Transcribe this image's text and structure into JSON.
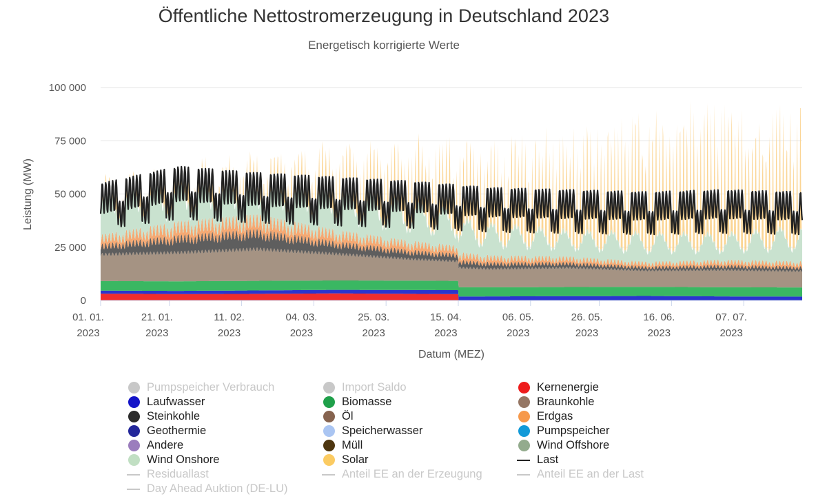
{
  "chart_data": {
    "type": "area",
    "title": "Öffentliche Nettostromerzeugung in Deutschland 2023",
    "subtitle": "Energetisch korrigierte Werte",
    "ylabel": "Leistung (MW)",
    "xlabel": "Datum (MEZ)",
    "ylim": [
      0,
      100000
    ],
    "yticks": [
      "0",
      "25 000",
      "50 000",
      "75 000",
      "100 000"
    ],
    "xlim": [
      "2023-01-01",
      "2023-07-24"
    ],
    "xticks": [
      {
        "day": "01. 01.",
        "year": "2023"
      },
      {
        "day": "21. 01.",
        "year": "2023"
      },
      {
        "day": "11. 02.",
        "year": "2023"
      },
      {
        "day": "04. 03.",
        "year": "2023"
      },
      {
        "day": "25. 03.",
        "year": "2023"
      },
      {
        "day": "15. 04.",
        "year": "2023"
      },
      {
        "day": "06. 05.",
        "year": "2023"
      },
      {
        "day": "26. 05.",
        "year": "2023"
      },
      {
        "day": "16. 06.",
        "year": "2023"
      },
      {
        "day": "07. 07.",
        "year": "2023"
      }
    ],
    "grid": true,
    "legend_position": "bottom",
    "series": [
      {
        "name": "Kernenergie",
        "color": "#ee2222",
        "values": [
          3200,
          3000,
          3100,
          3300,
          3100,
          2900,
          0,
          0,
          0,
          0
        ]
      },
      {
        "name": "Laufwasser",
        "color": "#1f2acb",
        "values": [
          1400,
          1500,
          1600,
          1700,
          1800,
          1900,
          2000,
          2100,
          1900,
          1800
        ]
      },
      {
        "name": "Biomasse",
        "color": "#2fb35a",
        "values": [
          4500,
          4500,
          4500,
          4400,
          4400,
          4300,
          4300,
          4300,
          4300,
          4300
        ]
      },
      {
        "name": "Braunkohle",
        "color": "#a08d7c",
        "values": [
          13000,
          14000,
          15500,
          13000,
          10500,
          9000,
          9500,
          8000,
          8500,
          8000
        ]
      },
      {
        "name": "Steinkohle",
        "color": "#555555",
        "values": [
          4000,
          7000,
          8000,
          5000,
          3500,
          2500,
          2000,
          1500,
          1800,
          1700
        ]
      },
      {
        "name": "Erdgas",
        "color": "#f4a46c",
        "values": [
          4000,
          6000,
          6500,
          5000,
          4000,
          3000,
          2500,
          2000,
          2300,
          2200
        ]
      },
      {
        "name": "Wind Onshore",
        "color": "#c6e0cc",
        "values": [
          15000,
          12000,
          10000,
          14000,
          13000,
          11000,
          9000,
          10000,
          9000,
          12000
        ]
      },
      {
        "name": "Solar",
        "color": "#fbd38e",
        "values": [
          3000,
          4000,
          6000,
          9000,
          12000,
          16000,
          19000,
          22000,
          24000,
          23000
        ]
      },
      {
        "name": "Last",
        "color": "#222222",
        "values": [
          55000,
          63000,
          60000,
          58000,
          56000,
          53000,
          52000,
          51000,
          52000,
          51000
        ]
      }
    ]
  },
  "legend": [
    {
      "label": "Pumpspeicher Verbrauch",
      "color": "#c8c8c8",
      "kind": "dot",
      "hidden": true
    },
    {
      "label": "Import Saldo",
      "color": "#c8c8c8",
      "kind": "dot",
      "hidden": true
    },
    {
      "label": "Kernenergie",
      "color": "#ee1c1c",
      "kind": "dot",
      "hidden": false
    },
    {
      "label": "Laufwasser",
      "color": "#1414c8",
      "kind": "dot",
      "hidden": false
    },
    {
      "label": "Biomasse",
      "color": "#1fa04a",
      "kind": "dot",
      "hidden": false
    },
    {
      "label": "Braunkohle",
      "color": "#957664",
      "kind": "dot",
      "hidden": false
    },
    {
      "label": "Steinkohle",
      "color": "#2b2b2b",
      "kind": "dot",
      "hidden": false
    },
    {
      "label": "Öl",
      "color": "#86634f",
      "kind": "dot",
      "hidden": false
    },
    {
      "label": "Erdgas",
      "color": "#f6994c",
      "kind": "dot",
      "hidden": false
    },
    {
      "label": "Geothermie",
      "color": "#23279a",
      "kind": "dot",
      "hidden": false
    },
    {
      "label": "Speicherwasser",
      "color": "#aac5f2",
      "kind": "dot",
      "hidden": false
    },
    {
      "label": "Pumpspeicher",
      "color": "#129ad8",
      "kind": "dot",
      "hidden": false
    },
    {
      "label": "Andere",
      "color": "#9b7dbd",
      "kind": "dot",
      "hidden": false
    },
    {
      "label": "Müll",
      "color": "#4e3610",
      "kind": "dot",
      "hidden": false
    },
    {
      "label": "Wind Offshore",
      "color": "#93ab8d",
      "kind": "dot",
      "hidden": false
    },
    {
      "label": "Wind Onshore",
      "color": "#c1dfc3",
      "kind": "dot",
      "hidden": false
    },
    {
      "label": "Solar",
      "color": "#fbcb62",
      "kind": "dot",
      "hidden": false
    },
    {
      "label": "Last",
      "color": "#222222",
      "kind": "line",
      "hidden": false
    },
    {
      "label": "Residuallast",
      "color": "#c8c8c8",
      "kind": "line",
      "hidden": true
    },
    {
      "label": "Anteil EE an der Erzeugung",
      "color": "#c8c8c8",
      "kind": "line",
      "hidden": true
    },
    {
      "label": "Anteil EE an der Last",
      "color": "#c8c8c8",
      "kind": "line",
      "hidden": true
    },
    {
      "label": "Day Ahead Auktion (DE-LU)",
      "color": "#c8c8c8",
      "kind": "line",
      "hidden": true
    }
  ]
}
